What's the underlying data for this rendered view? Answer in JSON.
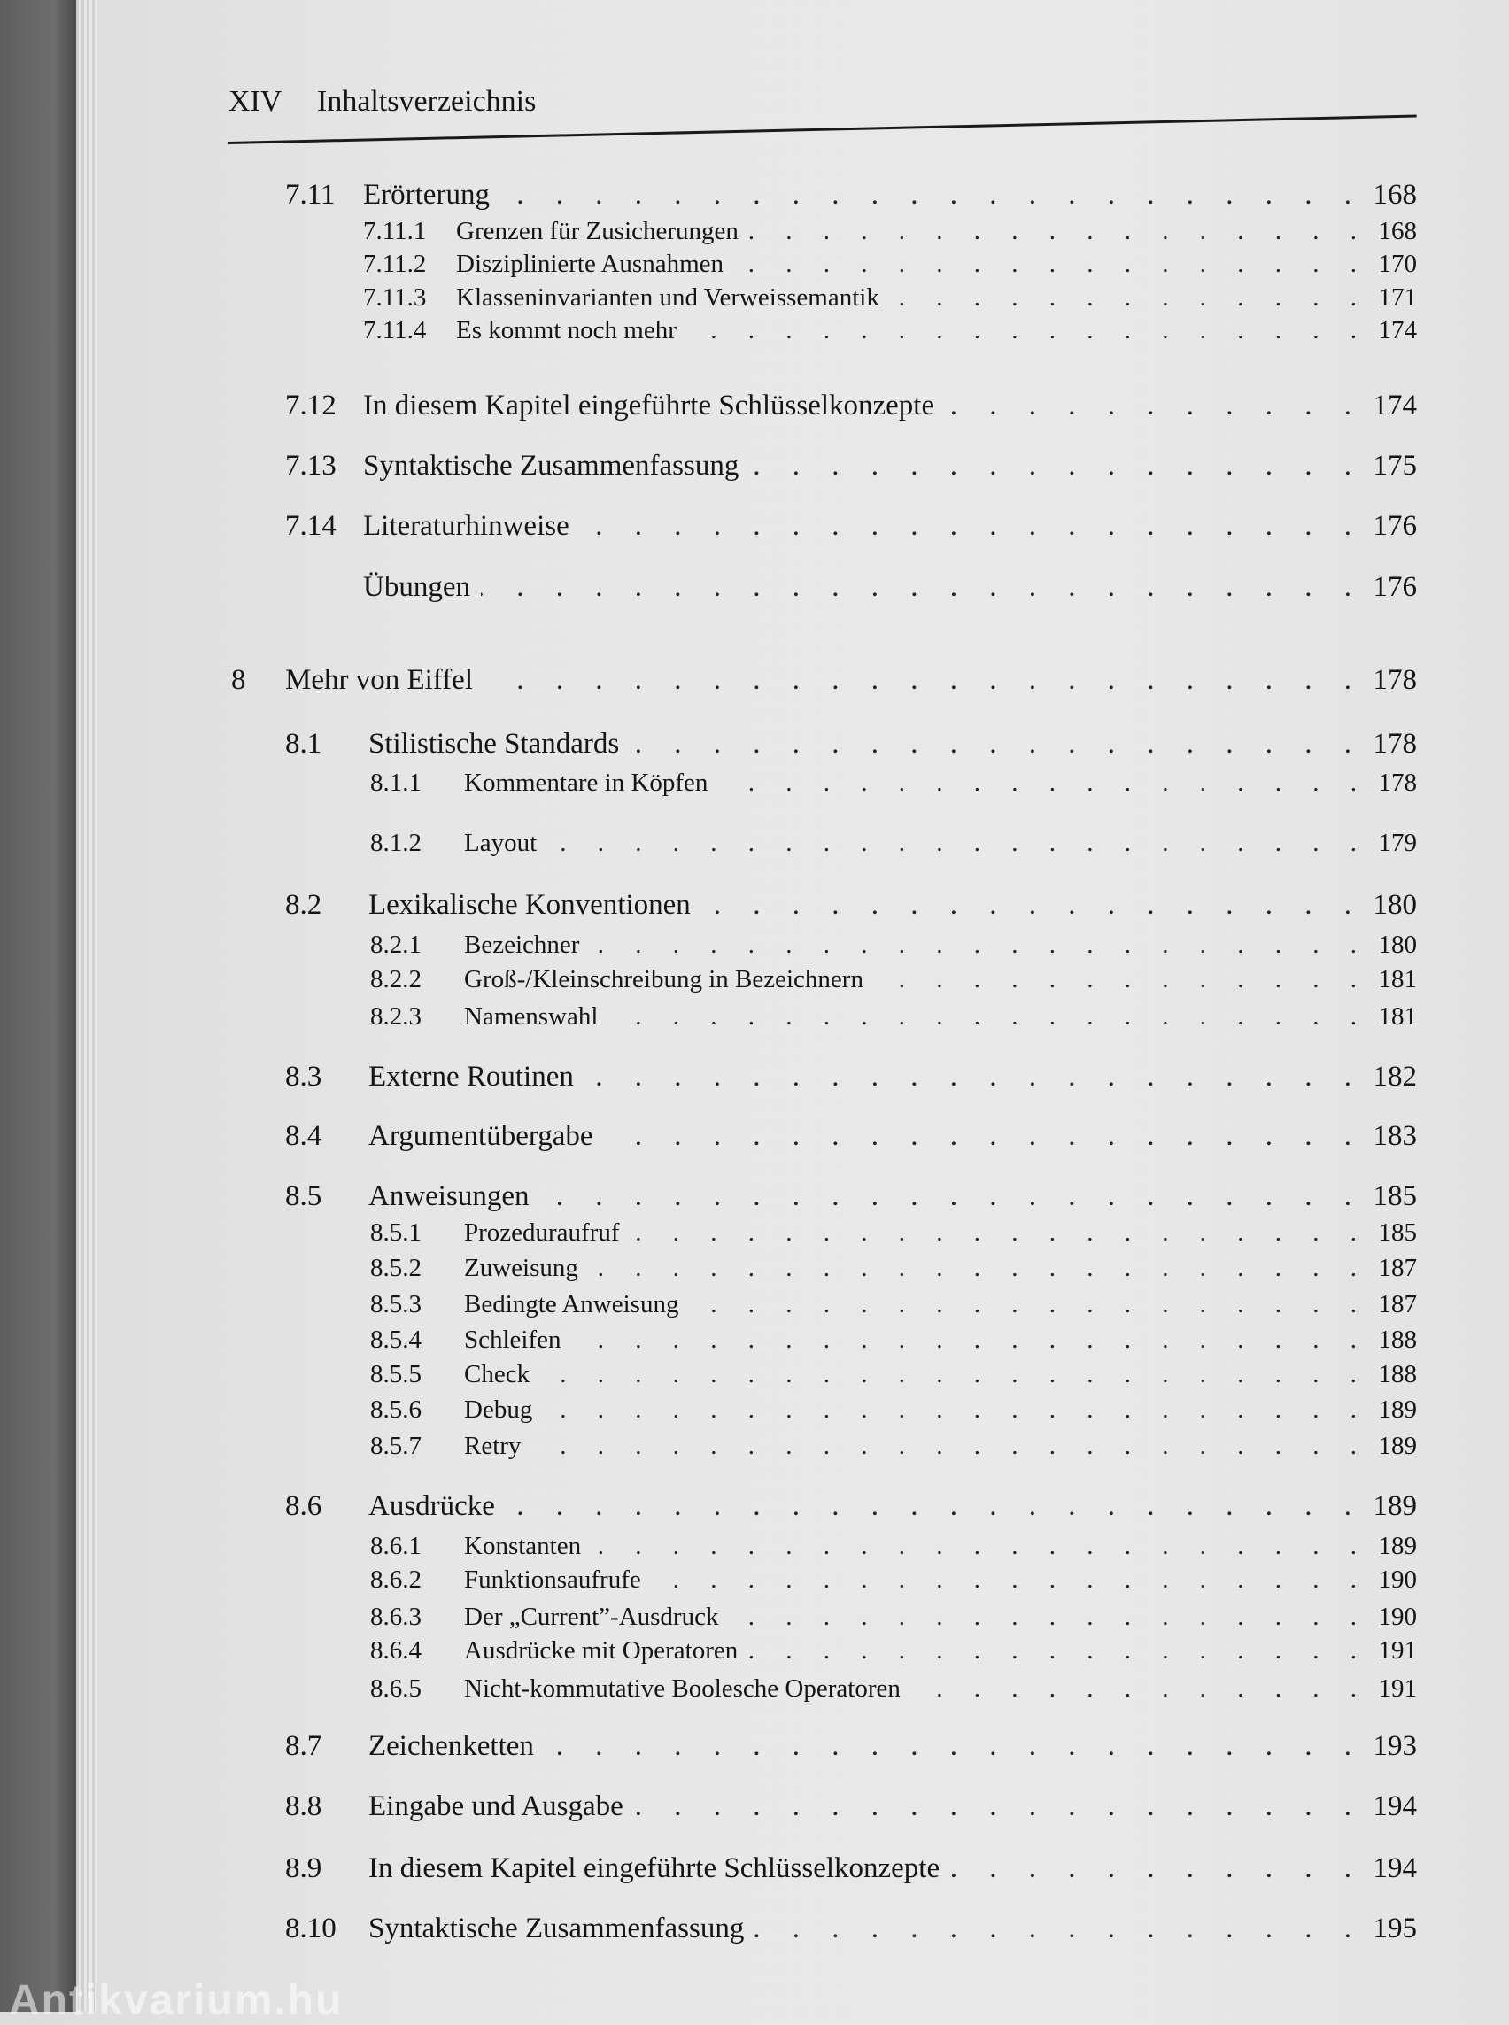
{
  "header": {
    "page_number": "XIV",
    "title": "Inhaltsverzeichnis"
  },
  "entries": [
    {
      "level": 2,
      "number": "7.11",
      "title": "Erörterung",
      "page": "168"
    },
    {
      "level": 3,
      "number": "7.11.1",
      "title": "Grenzen für Zusicherungen",
      "page": "168"
    },
    {
      "level": 3,
      "number": "7.11.2",
      "title": "Disziplinierte Ausnahmen",
      "page": "170"
    },
    {
      "level": 3,
      "number": "7.11.3",
      "title": "Klasseninvarianten und Verweissemantik",
      "page": "171"
    },
    {
      "level": 3,
      "number": "7.11.4",
      "title": "Es kommt noch mehr",
      "page": "174"
    },
    {
      "level": 2,
      "number": "7.12",
      "title": "In diesem Kapitel eingeführte Schlüsselkonzepte",
      "page": "174"
    },
    {
      "level": 2,
      "number": "7.13",
      "title": "Syntaktische Zusammenfassung",
      "page": "175"
    },
    {
      "level": 2,
      "number": "7.14",
      "title": "Literaturhinweise",
      "page": "176"
    },
    {
      "level": 2,
      "number": "",
      "title": "Übungen",
      "page": "176"
    },
    {
      "level": 1,
      "number": "8",
      "title": "Mehr von Eiffel",
      "page": "178"
    },
    {
      "level": 2,
      "number": "8.1",
      "title": "Stilistische Standards",
      "page": "178"
    },
    {
      "level": 3,
      "number": "8.1.1",
      "title": "Kommentare in Köpfen",
      "page": "178"
    },
    {
      "level": 3,
      "number": "8.1.2",
      "title": "Layout",
      "page": "179"
    },
    {
      "level": 2,
      "number": "8.2",
      "title": "Lexikalische Konventionen",
      "page": "180"
    },
    {
      "level": 3,
      "number": "8.2.1",
      "title": "Bezeichner",
      "page": "180"
    },
    {
      "level": 3,
      "number": "8.2.2",
      "title": "Groß-/Kleinschreibung in Bezeichnern",
      "page": "181"
    },
    {
      "level": 3,
      "number": "8.2.3",
      "title": "Namenswahl",
      "page": "181"
    },
    {
      "level": 2,
      "number": "8.3",
      "title": "Externe Routinen",
      "page": "182"
    },
    {
      "level": 2,
      "number": "8.4",
      "title": "Argumentübergabe",
      "page": "183"
    },
    {
      "level": 2,
      "number": "8.5",
      "title": "Anweisungen",
      "page": "185"
    },
    {
      "level": 3,
      "number": "8.5.1",
      "title": "Prozeduraufruf",
      "page": "185"
    },
    {
      "level": 3,
      "number": "8.5.2",
      "title": "Zuweisung",
      "page": "187"
    },
    {
      "level": 3,
      "number": "8.5.3",
      "title": "Bedingte Anweisung",
      "page": "187"
    },
    {
      "level": 3,
      "number": "8.5.4",
      "title": "Schleifen",
      "page": "188"
    },
    {
      "level": 3,
      "number": "8.5.5",
      "title": "Check",
      "page": "188"
    },
    {
      "level": 3,
      "number": "8.5.6",
      "title": "Debug",
      "page": "189"
    },
    {
      "level": 3,
      "number": "8.5.7",
      "title": "Retry",
      "page": "189"
    },
    {
      "level": 2,
      "number": "8.6",
      "title": "Ausdrücke",
      "page": "189"
    },
    {
      "level": 3,
      "number": "8.6.1",
      "title": "Konstanten",
      "page": "189"
    },
    {
      "level": 3,
      "number": "8.6.2",
      "title": "Funktionsaufrufe",
      "page": "190"
    },
    {
      "level": 3,
      "number": "8.6.3",
      "title": "Der „Current”-Ausdruck",
      "page": "190"
    },
    {
      "level": 3,
      "number": "8.6.4",
      "title": "Ausdrücke mit Operatoren",
      "page": "191"
    },
    {
      "level": 3,
      "number": "8.6.5",
      "title": "Nicht-kommutative Boolesche Operatoren",
      "page": "191"
    },
    {
      "level": 2,
      "number": "8.7",
      "title": "Zeichenketten",
      "page": "193"
    },
    {
      "level": 2,
      "number": "8.8",
      "title": "Eingabe und Ausgabe",
      "page": "194"
    },
    {
      "level": 2,
      "number": "8.9",
      "title": "In diesem Kapitel eingeführte Schlüsselkonzepte",
      "page": "194"
    },
    {
      "level": 2,
      "number": "8.10",
      "title": "Syntaktische Zusammenfassung",
      "page": "195"
    }
  ],
  "watermark": "Antikvarium.hu"
}
